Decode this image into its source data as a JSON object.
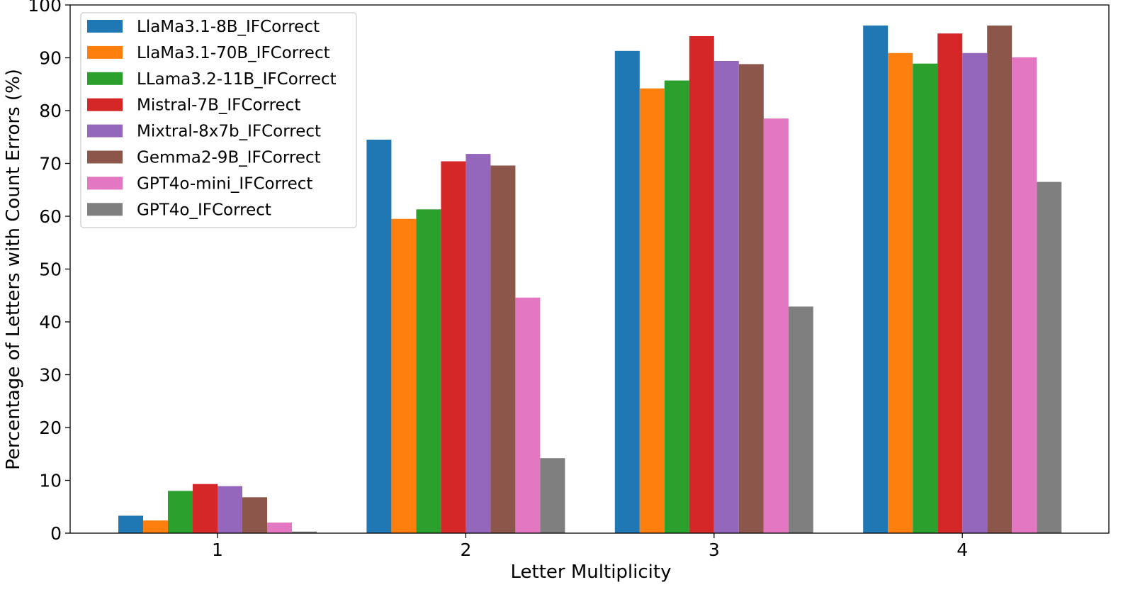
{
  "chart_data": {
    "type": "bar",
    "xlabel": "Letter Multiplicity",
    "ylabel": "Percentage of Letters with Count Errors (%)",
    "categories": [
      "1",
      "2",
      "3",
      "4"
    ],
    "ylim": [
      0,
      100
    ],
    "yticks": [
      "0",
      "10",
      "20",
      "30",
      "40",
      "50",
      "60",
      "70",
      "80",
      "90",
      "100"
    ],
    "grid": false,
    "legend_position": "top-left",
    "series": [
      {
        "name": "LlaMa3.1-8B_IFCorrect",
        "color": "#1f77b4",
        "values": [
          3.3,
          74.5,
          91.3,
          96.1
        ]
      },
      {
        "name": "LlaMa3.1-70B_IFCorrect",
        "color": "#ff7f0e",
        "values": [
          2.4,
          59.5,
          84.2,
          90.9
        ]
      },
      {
        "name": "LLama3.2-11B_IFCorrect",
        "color": "#2ca02c",
        "values": [
          8.0,
          61.3,
          85.7,
          88.9
        ]
      },
      {
        "name": "Mistral-7B_IFCorrect",
        "color": "#d62728",
        "values": [
          9.3,
          70.4,
          94.1,
          94.6
        ]
      },
      {
        "name": "Mixtral-8x7b_IFCorrect",
        "color": "#9467bd",
        "values": [
          8.9,
          71.8,
          89.4,
          90.9
        ]
      },
      {
        "name": "Gemma2-9B_IFCorrect",
        "color": "#8c564b",
        "values": [
          6.8,
          69.6,
          88.8,
          96.1
        ]
      },
      {
        "name": "GPT4o-mini_IFCorrect",
        "color": "#e377c2",
        "values": [
          2.0,
          44.6,
          78.5,
          90.1
        ]
      },
      {
        "name": "GPT4o_IFCorrect",
        "color": "#7f7f7f",
        "values": [
          0.3,
          14.2,
          42.9,
          66.5
        ]
      }
    ]
  }
}
